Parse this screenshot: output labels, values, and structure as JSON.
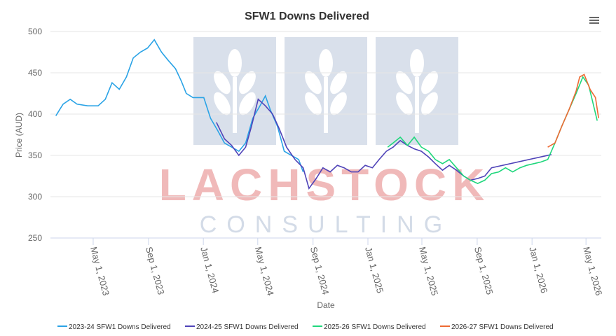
{
  "chart_data": {
    "type": "line",
    "title": "SFW1 Downs Delivered",
    "x_label": "Date",
    "y_label": "Price (AUD)",
    "watermark": [
      "LACHSTOCK",
      "CONSULTING"
    ],
    "xlim": [
      "2023-01-26",
      "2026-06-04"
    ],
    "xticks": [
      {
        "value": "2023-05-01",
        "label": "May 1, 2023"
      },
      {
        "value": "2023-09-01",
        "label": "Sep 1, 2023"
      },
      {
        "value": "2024-01-01",
        "label": "Jan 1, 2024"
      },
      {
        "value": "2024-05-01",
        "label": "May 1, 2024"
      },
      {
        "value": "2024-09-01",
        "label": "Sep 1, 2024"
      },
      {
        "value": "2025-01-01",
        "label": "Jan 1, 2025"
      },
      {
        "value": "2025-05-01",
        "label": "May 1, 2025"
      },
      {
        "value": "2025-09-01",
        "label": "Sep 1, 2025"
      },
      {
        "value": "2026-01-01",
        "label": "Jan 1, 2026"
      },
      {
        "value": "2026-05-01",
        "label": "May 1, 2026"
      }
    ],
    "ylim": [
      250,
      500
    ],
    "yticks": [
      250,
      300,
      350,
      400,
      450,
      500
    ],
    "grid": true,
    "legend": "bottom",
    "series": [
      {
        "name": "2023-24 SFW1 Downs Delivered",
        "color": "#2aa3e6",
        "x": [
          "2023-02-07",
          "2023-02-23",
          "2023-03-11",
          "2023-03-26",
          "2023-04-19",
          "2023-05-12",
          "2023-05-28",
          "2023-06-12",
          "2023-06-28",
          "2023-07-14",
          "2023-07-29",
          "2023-08-14",
          "2023-08-30",
          "2023-09-14",
          "2023-09-30",
          "2023-10-15",
          "2023-10-31",
          "2023-11-13",
          "2023-11-24",
          "2023-12-09",
          "2024-01-02",
          "2024-01-17",
          "2024-02-02",
          "2024-02-17",
          "2024-03-04",
          "2024-03-20",
          "2024-04-04",
          "2024-04-20",
          "2024-05-06",
          "2024-05-18",
          "2024-05-29",
          "2024-06-14",
          "2024-06-29",
          "2024-07-15",
          "2024-07-31",
          "2024-08-10"
        ],
        "values": [
          398,
          412,
          418,
          412,
          410,
          410,
          418,
          438,
          430,
          445,
          468,
          475,
          480,
          490,
          475,
          465,
          455,
          440,
          425,
          420,
          420,
          395,
          380,
          365,
          360,
          355,
          365,
          395,
          410,
          422,
          405,
          385,
          355,
          350,
          345,
          330
        ]
      },
      {
        "name": "2024-25 SFW1 Downs Delivered",
        "color": "#4f43b8",
        "x": [
          "2024-01-30",
          "2024-02-17",
          "2024-03-04",
          "2024-03-20",
          "2024-04-04",
          "2024-04-17",
          "2024-05-02",
          "2024-05-18",
          "2024-06-03",
          "2024-06-18",
          "2024-07-04",
          "2024-07-23",
          "2024-08-10",
          "2024-08-23",
          "2024-09-08",
          "2024-09-23",
          "2024-10-09",
          "2024-10-25",
          "2024-11-09",
          "2024-11-25",
          "2024-12-10",
          "2024-12-26",
          "2025-01-11",
          "2025-01-26",
          "2025-02-11",
          "2025-02-26",
          "2025-03-14",
          "2025-03-30",
          "2025-04-14",
          "2025-04-30",
          "2025-05-16",
          "2025-05-31",
          "2025-06-16",
          "2025-07-01",
          "2025-07-17",
          "2025-08-02",
          "2025-08-17",
          "2025-09-02",
          "2025-09-18",
          "2025-10-03",
          "2026-02-13"
        ],
        "values": [
          390,
          370,
          362,
          350,
          360,
          385,
          418,
          410,
          400,
          382,
          360,
          345,
          335,
          310,
          322,
          335,
          330,
          338,
          335,
          330,
          330,
          338,
          335,
          345,
          355,
          360,
          368,
          362,
          358,
          355,
          348,
          340,
          332,
          338,
          332,
          325,
          320,
          322,
          325,
          335,
          351
        ]
      },
      {
        "name": "2025-26 SFW1 Downs Delivered",
        "color": "#1fd77c",
        "x": [
          "2025-02-14",
          "2025-02-26",
          "2025-03-14",
          "2025-03-30",
          "2025-04-14",
          "2025-04-30",
          "2025-05-16",
          "2025-05-31",
          "2025-06-16",
          "2025-07-01",
          "2025-07-17",
          "2025-08-02",
          "2025-08-17",
          "2025-09-02",
          "2025-09-18",
          "2025-10-03",
          "2025-10-19",
          "2025-11-03",
          "2025-11-19",
          "2025-12-05",
          "2025-12-20",
          "2026-01-05",
          "2026-01-21",
          "2026-02-05",
          "2026-02-21",
          "2026-03-08",
          "2026-03-24",
          "2026-04-09",
          "2026-04-24",
          "2026-05-07",
          "2026-05-18",
          "2026-05-26"
        ],
        "values": [
          360,
          365,
          372,
          362,
          372,
          360,
          355,
          345,
          340,
          345,
          335,
          325,
          320,
          316,
          320,
          328,
          330,
          335,
          330,
          335,
          338,
          340,
          342,
          345,
          365,
          385,
          405,
          425,
          445,
          435,
          410,
          392
        ]
      },
      {
        "name": "2026-27 SFW1 Downs Delivered",
        "color": "#ee6a33",
        "x": [
          "2026-02-05",
          "2026-02-21",
          "2026-03-08",
          "2026-03-24",
          "2026-04-09",
          "2026-04-17",
          "2026-04-27",
          "2026-05-10",
          "2026-05-22",
          "2026-05-29"
        ],
        "values": [
          360,
          365,
          385,
          405,
          428,
          445,
          448,
          430,
          420,
          395
        ]
      }
    ]
  }
}
